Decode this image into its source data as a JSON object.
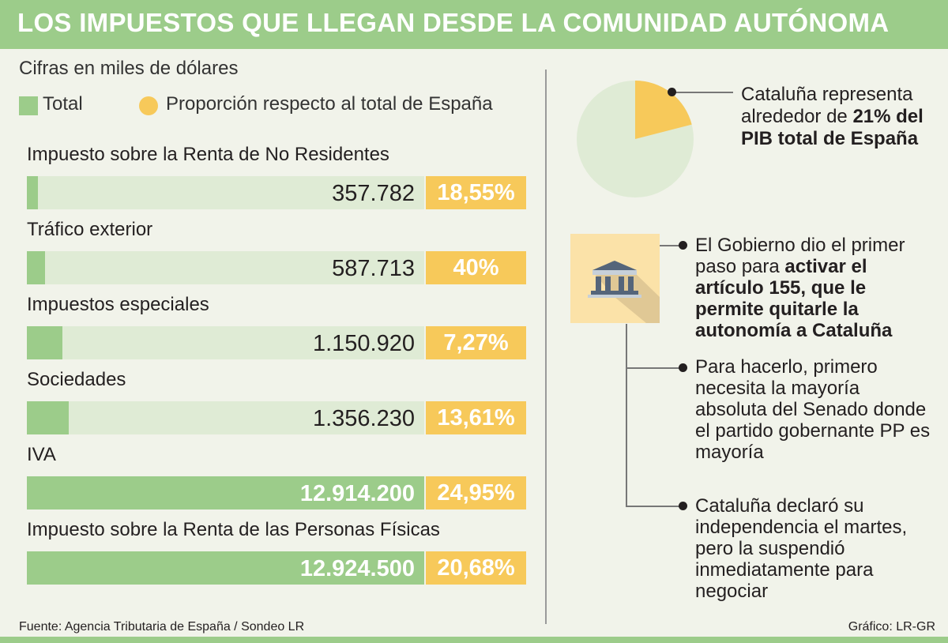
{
  "header": {
    "title": "LOS IMPUESTOS QUE LLEGAN DESDE LA COMUNIDAD AUTÓNOMA"
  },
  "subtitle": "Cifras en miles de dólares",
  "legend": {
    "total_label": "Total",
    "proportion_label": "Proporción respecto al total de España"
  },
  "colors": {
    "accent": "#9ccc8a",
    "track": "#dfebd5",
    "proportion": "#f7c95a",
    "background": "#f1f3ea"
  },
  "chart_data": {
    "type": "bar",
    "orientation": "horizontal",
    "title": "LOS IMPUESTOS QUE LLEGAN DESDE LA COMUNIDAD AUTÓNOMA",
    "unit_note": "Cifras en miles de dólares",
    "max_value": 12924500,
    "categories": [
      "Impuesto sobre la Renta de No Residentes",
      "Tráfico exterior",
      "Impuestos especiales",
      "Sociedades",
      "IVA",
      "Impuesto sobre la Renta de las Personas Físicas"
    ],
    "series": [
      {
        "name": "Total",
        "values": [
          357782,
          587713,
          1150920,
          1356230,
          12914200,
          12924500
        ]
      },
      {
        "name": "Proporción respecto al total de España",
        "values": [
          18.55,
          40,
          7.27,
          13.61,
          24.95,
          20.68
        ]
      }
    ],
    "value_labels": [
      "357.782",
      "587.713",
      "1.150.920",
      "1.356.230",
      "12.914.200",
      "12.924.500"
    ],
    "proportion_labels": [
      "18,55%",
      "40%",
      "7,27%",
      "13,61%",
      "24,95%",
      "20,68%"
    ]
  },
  "pie": {
    "share_percent": 21,
    "note_prefix": "Cataluña representa alrededor de ",
    "note_highlight": "21% del PIB total de España"
  },
  "timeline": [
    {
      "prefix": "El Gobierno dio el primer paso para ",
      "highlight": "activar el artículo 155, que le permite quitarle la autonomía a Cataluña"
    },
    {
      "prefix": "Para hacerlo, primero necesita la mayoría absoluta del Senado donde el partido gobernante PP es mayoría",
      "highlight": ""
    },
    {
      "prefix": "Cataluña declaró su independencia el martes, pero la suspendió inmediatamente para negociar",
      "highlight": ""
    }
  ],
  "footer": {
    "source": "Fuente: Agencia Tributaria de España /  Sondeo LR",
    "credit": "Gráfico: LR-GR"
  }
}
